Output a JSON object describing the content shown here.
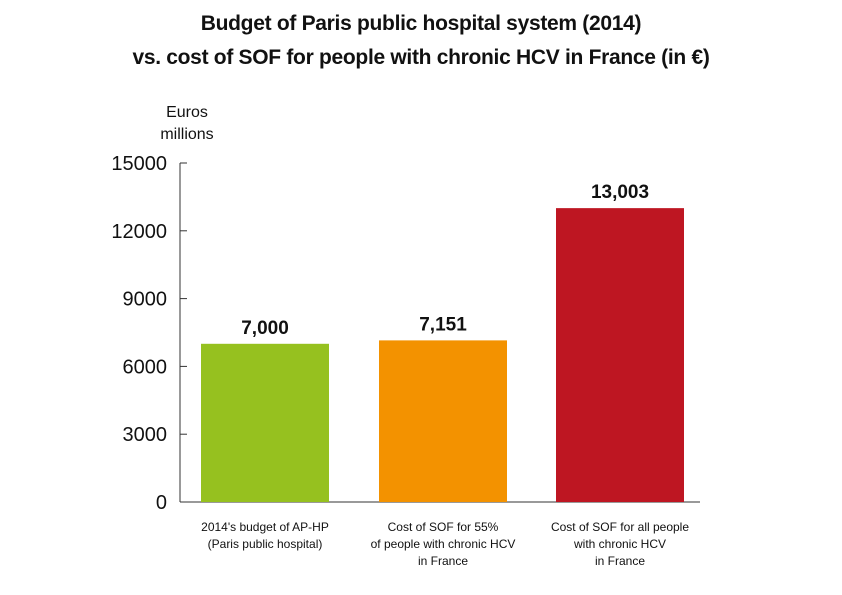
{
  "chart_data": {
    "type": "bar",
    "title": "Budget of Paris public hospital system (2014)",
    "subtitle": "vs. cost of SOF for people with chronic HCV in France (in €)",
    "ylabel": [
      "Euros",
      "millions"
    ],
    "ylim": [
      0,
      15000
    ],
    "yticks": [
      0,
      3000,
      6000,
      9000,
      12000,
      15000
    ],
    "grid": false,
    "categories": [
      [
        "2014's budget of AP-HP",
        "(Paris public hospital)"
      ],
      [
        "Cost of SOF for 55%",
        "of people with chronic HCV",
        "in France"
      ],
      [
        "Cost of SOF for all people",
        "with chronic HCV",
        "in France"
      ]
    ],
    "values": [
      7000,
      7151,
      13003
    ],
    "data_labels": [
      "7,000",
      "7,151",
      "13,003"
    ],
    "colors": [
      "#96c11f",
      "#f39200",
      "#be1622"
    ]
  }
}
